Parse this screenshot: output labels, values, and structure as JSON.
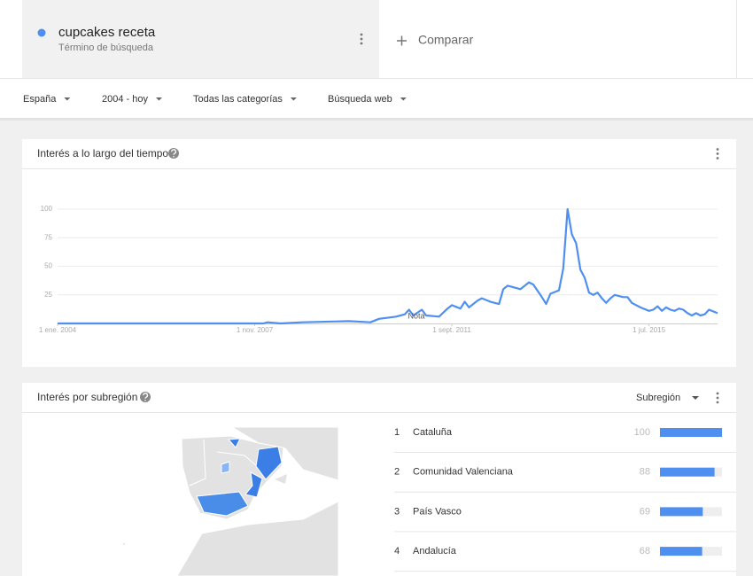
{
  "search_term": {
    "term": "cupcakes receta",
    "subtitle": "Término de búsqueda"
  },
  "compare": "Comparar",
  "filters": [
    "España",
    "2004 - hoy",
    "Todas las categorías",
    "Búsqueda web"
  ],
  "chart_data": {
    "type": "line",
    "title": "Interés a lo largo del tiempo",
    "x": [
      "2004-01",
      "2008-01",
      "2008-02",
      "2008-05",
      "2008-10",
      "2009-09",
      "2010-02",
      "2010-04",
      "2010-08",
      "2010-10",
      "2010-11",
      "2010-12",
      "2011-02",
      "2011-03",
      "2011-06",
      "2011-08",
      "2011-09",
      "2011-11",
      "2011-12",
      "2012-01",
      "2012-03",
      "2012-04",
      "2012-06",
      "2012-08",
      "2012-09",
      "2012-10",
      "2012-11",
      "2013-01",
      "2013-03",
      "2013-04",
      "2013-06",
      "2013-07",
      "2013-08",
      "2013-10",
      "2013-11",
      "2013-12",
      "2014-01",
      "2014-02",
      "2014-03",
      "2014-04",
      "2014-05",
      "2014-06",
      "2014-07",
      "2014-08",
      "2014-09",
      "2014-10",
      "2014-11",
      "2015-01",
      "2015-02",
      "2015-03",
      "2015-05",
      "2015-07",
      "2015-08",
      "2015-09",
      "2015-10",
      "2015-11",
      "2015-12",
      "2016-01",
      "2016-02",
      "2016-03",
      "2016-04",
      "2016-05",
      "2016-06",
      "2016-07",
      "2016-08",
      "2016-09",
      "2016-11"
    ],
    "values": [
      0,
      0,
      1,
      0,
      1,
      2,
      1,
      4,
      6,
      8,
      12,
      7,
      12,
      7,
      6,
      13,
      16,
      13,
      19,
      14,
      20,
      22,
      19,
      17,
      30,
      33,
      32,
      30,
      36,
      34,
      23,
      17,
      26,
      29,
      48,
      100,
      78,
      70,
      47,
      40,
      27,
      25,
      27,
      22,
      18,
      22,
      25,
      23,
      23,
      18,
      14,
      11,
      12,
      15,
      11,
      14,
      12,
      11,
      13,
      12,
      9,
      7,
      9,
      7,
      8,
      12,
      9
    ],
    "color": "#4f8ff0",
    "xlim": [
      "2004-01",
      "2016-11"
    ],
    "xticks": [
      {
        "value": "2004-01",
        "label": "1 ene. 2004"
      },
      {
        "value": "2007-11",
        "label": "1 nov. 2007"
      },
      {
        "value": "2011-09",
        "label": "1 sept. 2011"
      },
      {
        "value": "2015-07",
        "label": "1 jul. 2015"
      }
    ],
    "ylim": [
      0,
      100
    ],
    "yticks": [
      25,
      50,
      75,
      100
    ],
    "grid": true,
    "annotations": [
      "Nota"
    ]
  },
  "subregion": {
    "title": "Interés por subregión",
    "selector": "Subregión",
    "rows": [
      {
        "rank": 1,
        "name": "Cataluña",
        "value": 100
      },
      {
        "rank": 2,
        "name": "Comunidad Valenciana",
        "value": 88
      },
      {
        "rank": 3,
        "name": "País Vasco",
        "value": 69
      },
      {
        "rank": 4,
        "name": "Andalucía",
        "value": 68
      }
    ]
  }
}
